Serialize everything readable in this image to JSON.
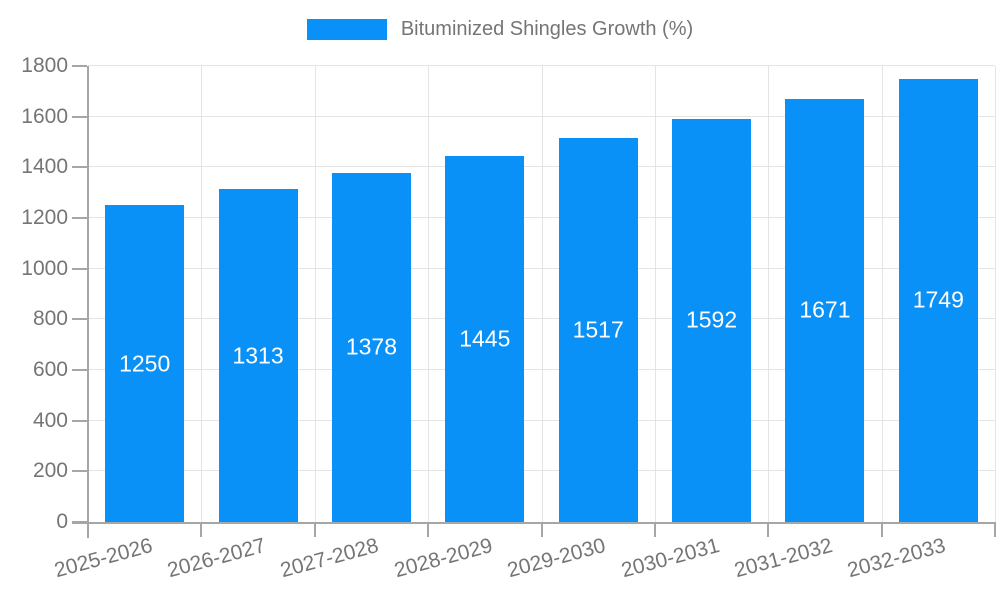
{
  "legend": {
    "label": "Bituminized Shingles Growth (%)"
  },
  "colors": {
    "bar": "#0991f7",
    "axis": "#a6a6a6",
    "grid": "#e4e4e4",
    "tick_text": "#757575",
    "bar_label_text": "#ffffff",
    "background": "#ffffff"
  },
  "chart_data": {
    "type": "bar",
    "title": "Bituminized Shingles Growth (%)",
    "categories": [
      "2025-2026",
      "2026-2027",
      "2027-2028",
      "2028-2029",
      "2029-2030",
      "2030-2031",
      "2031-2032",
      "2032-2033"
    ],
    "values": [
      1250,
      1313,
      1378,
      1445,
      1517,
      1592,
      1671,
      1749
    ],
    "bar_labels": [
      "1250",
      "1313",
      "1378",
      "1445",
      "1517",
      "1592",
      "1671",
      "1749"
    ],
    "ytick_labels": [
      "0",
      "200",
      "400",
      "600",
      "800",
      "1000",
      "1200",
      "1400",
      "1600",
      "1800"
    ],
    "xlabel": "",
    "ylabel": "",
    "ylim": [
      0,
      1800
    ],
    "ytick_step": 200,
    "grid": true,
    "legend_position": "top",
    "xtick_rotation_deg": -15,
    "value_label_position": "center-inside"
  }
}
